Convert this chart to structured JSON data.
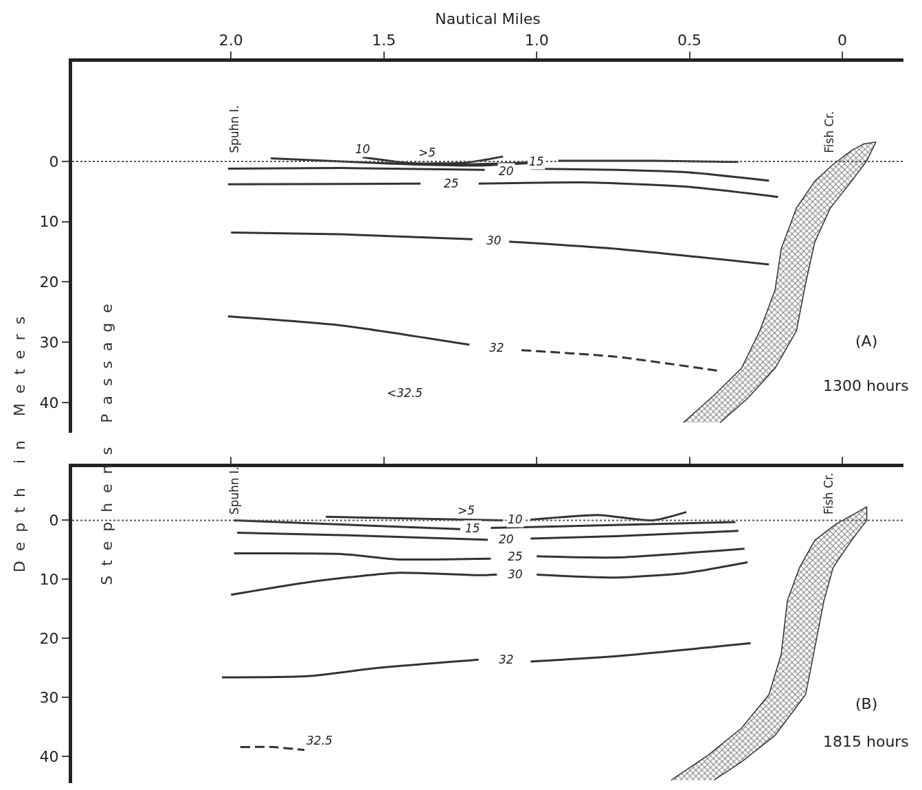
{
  "chart_data": [
    {
      "type": "line",
      "title": "(A)",
      "subtitle": "1300 hours",
      "xlabel": "Nautical Miles",
      "ylabel": "Depth in Meters",
      "xlim": [
        2.52,
        -0.2
      ],
      "ylim": [
        45,
        -16.5
      ],
      "xticks": [
        {
          "value": 2,
          "label": "2.0"
        },
        1.5,
        {
          "value": 1,
          "label": "1.0"
        },
        0.5,
        0
      ],
      "yticks": [
        0,
        10,
        20,
        30,
        40
      ],
      "grid": false,
      "x": [
        1.87,
        1.64,
        1.41,
        1.19,
        1.03
      ],
      "series": [
        {
          "color": "#333333",
          "values": [
            -0.5,
            0,
            0.5,
            0.7,
            0.3
          ]
        },
        {
          "color": "#333333",
          "x": [
            1.57,
            1.41,
            1.23,
            1.11
          ],
          "values": [
            -0.7,
            0.3,
            0.2,
            -0.8
          ]
        },
        {
          "color": "#333333",
          "x": [
            1.51,
            1.23,
            1.03,
            0.98,
            0.93,
            0.62,
            0.34
          ],
          "values": [
            0.3,
            0.5,
            0.2,
            null,
            -0.1,
            -0.1,
            0.1
          ]
        },
        {
          "color": "#333333",
          "x": [
            2.01,
            1.64,
            1.17,
            1.1,
            1.02,
            0.74,
            0.51,
            0.24
          ],
          "values": [
            1.2,
            1.1,
            1.4,
            null,
            1.2,
            1.4,
            1.8,
            3.2
          ]
        },
        {
          "color": "#333333",
          "x": [
            2.01,
            1.38,
            1.29,
            1.19,
            0.85,
            0.51,
            0.21
          ],
          "values": [
            3.8,
            3.7,
            null,
            3.7,
            3.5,
            4.2,
            5.9
          ]
        },
        {
          "color": "#333333",
          "x": [
            2.0,
            1.64,
            1.21,
            1.15,
            1.09,
            0.74,
            0.24
          ],
          "values": [
            11.8,
            12.1,
            12.9,
            null,
            13.3,
            14.5,
            17.1
          ]
        },
        {
          "color": "#333333",
          "x": [
            2.01,
            1.64,
            1.22
          ],
          "values": [
            25.7,
            27.2,
            30.4
          ]
        },
        {
          "color": "#333333",
          "line_style": "dashed",
          "x": [
            1.05,
            0.74,
            0.41
          ],
          "values": [
            31.3,
            32.4,
            34.7
          ]
        },
        {
          "type": "area",
          "color": "#777777",
          "x": [
            0.52,
            0.42,
            0.33,
            0.27,
            0.22,
            0.2,
            0.15,
            0.09,
            0.03,
            -0.03,
            -0.07,
            -0.11,
            -0.08,
            -0.03,
            0.04,
            0.09,
            0.12,
            0.15,
            0.22,
            0.31,
            0.4
          ],
          "values": [
            43.3,
            38.8,
            34.3,
            28.1,
            21.3,
            14.5,
            7.7,
            3.3,
            0.5,
            -1.8,
            -2.9,
            -3.2,
            -0.1,
            3.3,
            7.8,
            13.4,
            20.2,
            28.1,
            34.3,
            39.3,
            43.3
          ]
        }
      ],
      "ref_lines": [
        {
          "axis": "y",
          "value": 0,
          "line_style": "dotted",
          "color": "#555555"
        }
      ],
      "annotations": [
        "Stephens Passage",
        "Spuhn I.",
        "Fish Cr.",
        "<32.5",
        {
          "text": "10",
          "x": 1.57,
          "y": -2
        },
        {
          "text": ">5",
          "x": 1.36,
          "y": -1.5
        },
        {
          "text": "15",
          "x": 1.0,
          "y": 0
        },
        {
          "text": "20",
          "x": 1.1,
          "y": 1.6
        },
        {
          "text": "25",
          "x": 1.28,
          "y": 3.7
        },
        {
          "text": "30",
          "x": 1.14,
          "y": 13.1
        },
        {
          "text": "32",
          "x": 1.13,
          "y": 30.9
        }
      ]
    },
    {
      "type": "line",
      "title": "(B)",
      "subtitle": "1815 hours",
      "xlim": [
        2.52,
        -0.2
      ],
      "ylim": [
        44.5,
        -9
      ],
      "xticks": [
        {
          "value": 2,
          "label": null
        },
        {
          "value": 1.5,
          "label": null
        },
        {
          "value": 1,
          "label": null
        },
        {
          "value": 0.5,
          "label": null
        },
        {
          "value": 0,
          "label": null
        }
      ],
      "yticks": [
        0,
        10,
        20,
        30,
        40
      ],
      "tick_labels": "y",
      "grid": false,
      "x": [
        1.69,
        1.11,
        1.07,
        1.02,
        0.8,
        0.62,
        0.51
      ],
      "series": [
        {
          "color": "#333333",
          "values": [
            -0.6,
            0,
            null,
            -0.1,
            -0.9,
            0,
            -1.4
          ]
        },
        {
          "color": "#333333",
          "x": [
            1.99,
            1.25,
            1.21,
            1.15,
            0.35
          ],
          "values": [
            0,
            1.5,
            null,
            1.3,
            0.3
          ]
        },
        {
          "color": "#333333",
          "x": [
            1.98,
            1.64,
            1.16,
            1.1,
            1.02,
            0.74,
            0.34
          ],
          "values": [
            2.1,
            2.5,
            3.3,
            null,
            3.1,
            2.7,
            1.8
          ]
        },
        {
          "color": "#333333",
          "x": [
            1.99,
            1.64,
            1.46,
            1.15,
            1.07,
            1.0,
            0.74,
            0.32
          ],
          "values": [
            5.6,
            5.7,
            6.6,
            6.5,
            null,
            6.1,
            6.3,
            4.8
          ]
        },
        {
          "color": "#333333",
          "x": [
            2.0,
            1.75,
            1.46,
            1.19,
            1.13,
            1.07,
            1.0,
            0.74,
            0.51,
            0.31
          ],
          "values": [
            12.6,
            10.5,
            8.9,
            9.3,
            9.2,
            null,
            9.2,
            9.7,
            8.9,
            7.1
          ]
        },
        {
          "color": "#333333",
          "x": [
            2.03,
            1.75,
            1.52,
            1.19,
            1.1,
            1.02,
            0.74,
            0.3
          ],
          "values": [
            26.6,
            26.4,
            25,
            23.6,
            null,
            23.9,
            23,
            20.8
          ]
        },
        {
          "color": "#333333",
          "line_style": "dashed",
          "x": [
            1.97,
            1.86,
            1.76
          ],
          "values": [
            38.4,
            38.4,
            38.9
          ]
        },
        {
          "type": "area",
          "color": "#777777",
          "x": [
            0.56,
            0.44,
            0.33,
            0.24,
            0.2,
            0.18,
            0.14,
            0.09,
            0.02,
            -0.04,
            -0.08,
            -0.08,
            -0.03,
            0.03,
            0.06,
            0.09,
            0.12,
            0.22,
            0.33,
            0.42
          ],
          "values": [
            44,
            39.8,
            35.2,
            29.5,
            22.7,
            13.6,
            8,
            3.4,
            0.6,
            -1.1,
            -2.3,
            0,
            3.4,
            8,
            13.6,
            21.6,
            29.5,
            36.4,
            40.9,
            44
          ]
        }
      ],
      "ref_lines": [
        {
          "axis": "y",
          "value": 0,
          "line_style": "dotted",
          "color": "#555555"
        }
      ],
      "annotations": [
        "Spuhn I.",
        "Fish Cr.",
        {
          "text": ">5",
          "x": 1.23,
          "y": -1.7
        },
        {
          "text": "10",
          "x": 1.07,
          "y": -0.2
        },
        {
          "text": "15",
          "x": 1.21,
          "y": 1.4
        },
        {
          "text": "20",
          "x": 1.1,
          "y": 3.2
        },
        {
          "text": "25",
          "x": 1.07,
          "y": 6.1
        },
        {
          "text": "30",
          "x": 1.07,
          "y": 9.1
        },
        {
          "text": "32",
          "x": 1.1,
          "y": 23.6
        },
        {
          "text": "32.5",
          "x": 1.71,
          "y": 37.3
        }
      ]
    }
  ]
}
